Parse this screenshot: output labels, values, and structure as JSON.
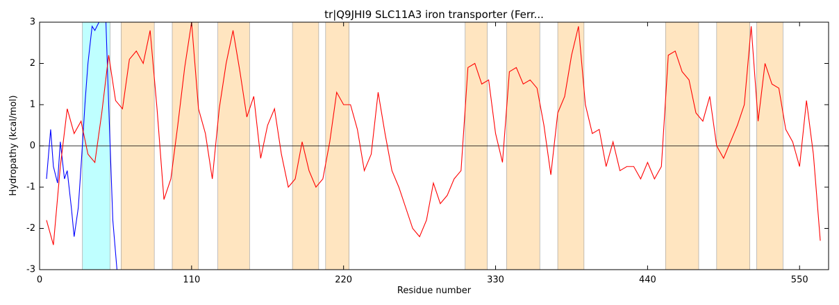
{
  "chart_data": {
    "type": "line",
    "title": "tr|Q9JHI9 SLC11A3 iron transporter (Ferr...",
    "xlabel": "Residue number",
    "ylabel": "Hydropathy (kcal/mol)",
    "xlim": [
      0,
      571
    ],
    "ylim": [
      -3,
      3
    ],
    "xticks": [
      0,
      110,
      220,
      330,
      440,
      550
    ],
    "yticks": [
      -3,
      -2,
      -1,
      0,
      1,
      2,
      3
    ],
    "zero_line": true,
    "regions": [
      {
        "color": "#bfffff",
        "start": 31,
        "end": 51
      },
      {
        "color": "#ffe5c0",
        "start": 59,
        "end": 83
      },
      {
        "color": "#ffe5c0",
        "start": 96,
        "end": 115
      },
      {
        "color": "#ffe5c0",
        "start": 129,
        "end": 152
      },
      {
        "color": "#ffe5c0",
        "start": 183,
        "end": 202
      },
      {
        "color": "#ffe5c0",
        "start": 207,
        "end": 224
      },
      {
        "color": "#ffe5c0",
        "start": 308,
        "end": 324
      },
      {
        "color": "#ffe5c0",
        "start": 338,
        "end": 362
      },
      {
        "color": "#ffe5c0",
        "start": 375,
        "end": 394
      },
      {
        "color": "#ffe5c0",
        "start": 453,
        "end": 477
      },
      {
        "color": "#ffe5c0",
        "start": 490,
        "end": 514
      },
      {
        "color": "#ffe5c0",
        "start": 519,
        "end": 538
      }
    ],
    "series": [
      {
        "color": "#0000ff",
        "x": [
          5,
          8,
          10,
          13,
          15,
          18,
          20,
          23,
          25,
          28,
          30,
          33,
          35,
          38,
          40,
          43,
          45,
          48,
          50,
          53,
          56
        ],
        "values": [
          -0.8,
          0.4,
          -0.5,
          -0.9,
          0.1,
          -0.8,
          -0.6,
          -1.5,
          -2.2,
          -1.5,
          -0.5,
          1.1,
          2.0,
          2.9,
          2.8,
          3.0,
          3.0,
          3.0,
          1.0,
          -1.8,
          -3.0
        ]
      },
      {
        "color": "#ff0000",
        "x": [
          5,
          10,
          15,
          20,
          25,
          30,
          35,
          40,
          45,
          50,
          55,
          60,
          65,
          70,
          75,
          80,
          85,
          90,
          95,
          100,
          105,
          110,
          115,
          120,
          125,
          130,
          135,
          140,
          145,
          150,
          155,
          160,
          165,
          170,
          175,
          180,
          185,
          190,
          195,
          200,
          205,
          210,
          215,
          220,
          225,
          230,
          235,
          240,
          245,
          250,
          255,
          260,
          265,
          270,
          275,
          280,
          285,
          290,
          295,
          300,
          305,
          310,
          315,
          320,
          325,
          330,
          335,
          340,
          345,
          350,
          355,
          360,
          365,
          370,
          375,
          380,
          385,
          390,
          395,
          400,
          405,
          410,
          415,
          420,
          425,
          430,
          435,
          440,
          445,
          450,
          455,
          460,
          465,
          470,
          475,
          480,
          485,
          490,
          495,
          500,
          505,
          510,
          515,
          520,
          525,
          530,
          535,
          540,
          545,
          550,
          555,
          560,
          565
        ],
        "values": [
          -1.8,
          -2.4,
          -0.5,
          0.9,
          0.3,
          0.6,
          -0.2,
          -0.4,
          0.8,
          2.2,
          1.1,
          0.9,
          2.1,
          2.3,
          2.0,
          2.8,
          0.9,
          -1.3,
          -0.8,
          0.5,
          1.9,
          3.0,
          0.9,
          0.3,
          -0.8,
          0.9,
          2.0,
          2.8,
          1.8,
          0.7,
          1.2,
          -0.3,
          0.5,
          0.9,
          -0.2,
          -1.0,
          -0.8,
          0.1,
          -0.6,
          -1.0,
          -0.8,
          0.1,
          1.3,
          1.0,
          1.0,
          0.4,
          -0.6,
          -0.2,
          1.3,
          0.3,
          -0.6,
          -1.0,
          -1.5,
          -2.0,
          -2.2,
          -1.8,
          -0.9,
          -1.4,
          -1.2,
          -0.8,
          -0.6,
          1.9,
          2.0,
          1.5,
          1.6,
          0.3,
          -0.4,
          1.8,
          1.9,
          1.5,
          1.6,
          1.4,
          0.5,
          -0.7,
          0.8,
          1.2,
          2.2,
          2.9,
          1.0,
          0.3,
          0.4,
          -0.5,
          0.1,
          -0.6,
          -0.5,
          -0.5,
          -0.8,
          -0.4,
          -0.8,
          -0.5,
          2.2,
          2.3,
          1.8,
          1.6,
          0.8,
          0.6,
          1.2,
          0.0,
          -0.3,
          0.1,
          0.5,
          1.0,
          2.9,
          0.6,
          2.0,
          1.5,
          1.4,
          0.4,
          0.1,
          -0.5,
          1.1,
          -0.2,
          -2.3
        ]
      }
    ]
  }
}
